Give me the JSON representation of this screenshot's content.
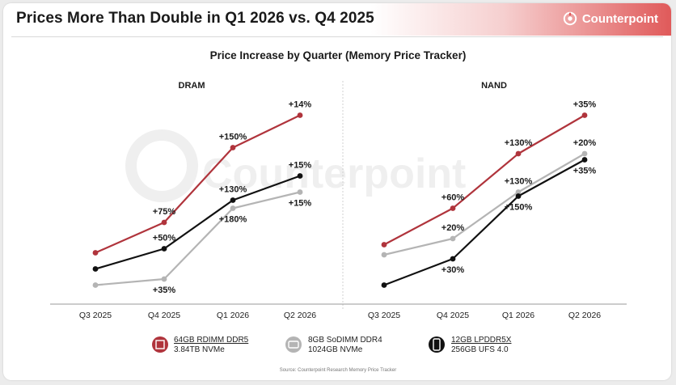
{
  "header": {
    "title": "Prices More Than Double in Q1 2026 vs. Q4 2025",
    "brand": "Counterpoint",
    "watermark": "Counterpoint"
  },
  "chart_data": {
    "type": "line",
    "title": "Price Increase by Quarter (Memory Price Tracker)",
    "source": "Source: Counterpoint Research Memory Price Tracker",
    "categories": [
      "Q3 2025",
      "Q4 2025",
      "Q1 2026",
      "Q2 2026"
    ],
    "colors": {
      "dram_ddr5": "#b0343c",
      "ddr4": "#b4b4b4",
      "lpddr5x": "#111111"
    },
    "legend": [
      {
        "key": "ddr5",
        "line1": "64GB RDIMM DDR5",
        "line2": "3.84TB NVMe",
        "color": "#b0343c",
        "icon": "server-memory-icon"
      },
      {
        "key": "ddr4",
        "line1": "8GB SoDIMM DDR4",
        "line2": "1024GB NVMe",
        "color": "#b4b4b4",
        "icon": "laptop-drive-icon"
      },
      {
        "key": "lpddr5x",
        "line1": "12GB LPDDR5X",
        "line2": "256GB UFS 4.0",
        "color": "#111111",
        "icon": "smartphone-icon"
      }
    ],
    "ylim": [
      0,
      100
    ],
    "panels": [
      {
        "name": "DRAM",
        "series": [
          {
            "key": "ddr5",
            "color": "#b0343c",
            "values": [
              23,
              38,
              75,
              91
            ],
            "labels": [
              "",
              "+75%",
              "+150%",
              "+14%"
            ],
            "label_pos": [
              "",
              "above",
              "above",
              "above"
            ]
          },
          {
            "key": "ddr4",
            "color": "#b4b4b4",
            "values": [
              7,
              10,
              45,
              53
            ],
            "labels": [
              "",
              "+35%",
              "+180%",
              "+15%"
            ],
            "label_pos": [
              "",
              "below",
              "below",
              "below"
            ]
          },
          {
            "key": "lpddr5x",
            "color": "#111111",
            "values": [
              15,
              25,
              49,
              61
            ],
            "labels": [
              "",
              "+50%",
              "+130%",
              "+15%"
            ],
            "label_pos": [
              "",
              "above",
              "above",
              "above"
            ]
          }
        ]
      },
      {
        "name": "NAND",
        "series": [
          {
            "key": "ddr5",
            "color": "#b0343c",
            "values": [
              27,
              45,
              72,
              91
            ],
            "labels": [
              "",
              "+60%",
              "+130%",
              "+35%"
            ],
            "label_pos": [
              "",
              "above",
              "above",
              "above"
            ]
          },
          {
            "key": "ddr4",
            "color": "#b4b4b4",
            "values": [
              22,
              30,
              53,
              72
            ],
            "labels": [
              "",
              "+20%",
              "+130%",
              "+20%"
            ],
            "label_pos": [
              "",
              "above",
              "above",
              "above"
            ]
          },
          {
            "key": "lpddr5x",
            "color": "#111111",
            "values": [
              7,
              20,
              51,
              69
            ],
            "labels": [
              "",
              "+30%",
              "+150%",
              "+35%"
            ],
            "label_pos": [
              "",
              "below",
              "below",
              "below"
            ]
          }
        ]
      }
    ]
  }
}
